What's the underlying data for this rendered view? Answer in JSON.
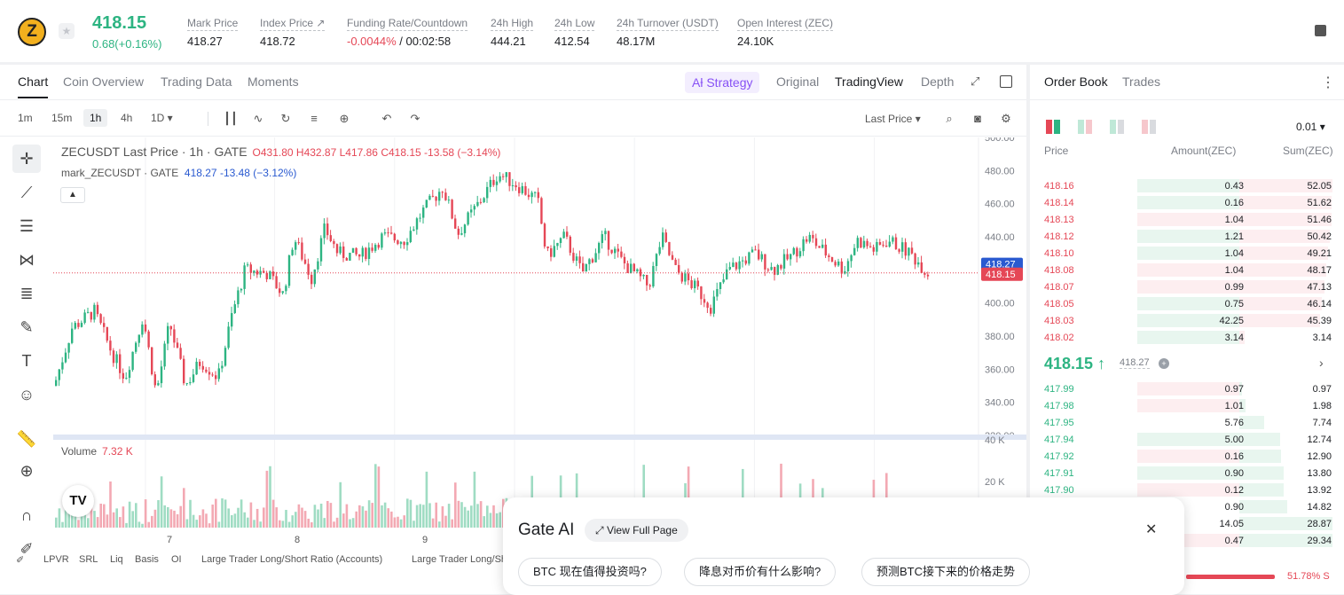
{
  "header": {
    "logo_letter": "Z",
    "star": "★",
    "last_price": "418.15",
    "change": "0.68(+0.16%)",
    "stats": [
      {
        "label": "Mark Price",
        "value": "418.27"
      },
      {
        "label": "Index Price ↗",
        "value": "418.72"
      },
      {
        "label": "Funding Rate/Countdown",
        "value_red": "-0.0044%",
        "value": " / 00:02:58"
      },
      {
        "label": "24h High",
        "value": "444.21"
      },
      {
        "label": "24h Low",
        "value": "412.54"
      },
      {
        "label": "24h Turnover (USDT)",
        "value": "48.17M"
      },
      {
        "label": "Open Interest (ZEC)",
        "value": "24.10K"
      }
    ]
  },
  "chart_tabs": [
    "Chart",
    "Coin Overview",
    "Trading Data",
    "Moments"
  ],
  "view_tabs": {
    "strategy": "Aƚ Strategy",
    "original": "Original",
    "tradingview": "TradingView",
    "depth": "Depth"
  },
  "timeframes": [
    "1m",
    "15m",
    "1h",
    "4h",
    "1D ▾"
  ],
  "price_type": "Last Price ▾",
  "legend": {
    "symbol": "ZECUSDT Last Price · 1h · GATE",
    "ohlc": "O431.80  H432.87  L417.86  C418.15  -13.58 (−3.14%)",
    "mark_name": "mark_ZECUSDT · GATE",
    "mark_vals": "418.27  -13.48 (−3.12%)",
    "volume_label": "Volume",
    "volume_value": "7.32 K"
  },
  "price_axis": [
    "500.00",
    "480.00",
    "460.00",
    "440.00",
    "420.00",
    "400.00",
    "380.00",
    "360.00",
    "340.00",
    "320.00"
  ],
  "price_tags": {
    "mark": "418.27",
    "last": "418.15"
  },
  "volume_axis": [
    "40 K",
    "20 K"
  ],
  "time_axis": [
    "7",
    "8",
    "9"
  ],
  "bottom_tabs": [
    "LPVR",
    "SRL",
    "Liq",
    "Basis",
    "OI",
    "Large Trader Long/Short Ratio (Accounts)",
    "Large Trader Long/Sh"
  ],
  "orderbook": {
    "tabs": [
      "Order Book",
      "Trades"
    ],
    "precision": "0.01  ▾",
    "headers": [
      "Price",
      "Amount(ZEC)",
      "Sum(ZEC)"
    ],
    "asks": [
      {
        "price": "418.16",
        "amount": "0.43",
        "sum": "52.05",
        "green": true,
        "apct": 1.0,
        "spct": 1.0
      },
      {
        "price": "418.14",
        "amount": "0.16",
        "sum": "51.62",
        "green": true,
        "apct": 1.0,
        "spct": 0.99
      },
      {
        "price": "418.13",
        "amount": "1.04",
        "sum": "51.46",
        "green": false,
        "apct": 1.0,
        "spct": 0.99
      },
      {
        "price": "418.12",
        "amount": "1.21",
        "sum": "50.42",
        "green": true,
        "apct": 1.0,
        "spct": 0.97
      },
      {
        "price": "418.10",
        "amount": "1.04",
        "sum": "49.21",
        "green": true,
        "apct": 1.0,
        "spct": 0.95
      },
      {
        "price": "418.08",
        "amount": "1.04",
        "sum": "48.17",
        "green": false,
        "apct": 1.0,
        "spct": 0.93
      },
      {
        "price": "418.07",
        "amount": "0.99",
        "sum": "47.13",
        "green": false,
        "apct": 1.0,
        "spct": 0.91
      },
      {
        "price": "418.05",
        "amount": "0.75",
        "sum": "46.14",
        "green": true,
        "apct": 1.0,
        "spct": 0.89
      },
      {
        "price": "418.03",
        "amount": "42.25",
        "sum": "45.39",
        "green": true,
        "apct": 1.0,
        "spct": 0.87
      },
      {
        "price": "418.02",
        "amount": "3.14",
        "sum": "3.14",
        "green": true,
        "apct": 1.0,
        "spct": 0.06
      }
    ],
    "mid_price": "418.15 ↑",
    "mid_mark": "418.27",
    "mid_info": "+",
    "bids": [
      {
        "price": "417.99",
        "amount": "0.97",
        "sum": "0.97",
        "green": false,
        "apct": 1.0,
        "spct": 0.03
      },
      {
        "price": "417.98",
        "amount": "1.01",
        "sum": "1.98",
        "green": false,
        "apct": 1.0,
        "spct": 0.07
      },
      {
        "price": "417.95",
        "amount": "5.76",
        "sum": "7.74",
        "green": false,
        "apct": 0.0,
        "spct": 0.27
      },
      {
        "price": "417.94",
        "amount": "5.00",
        "sum": "12.74",
        "green": true,
        "apct": 1.0,
        "spct": 0.44
      },
      {
        "price": "417.92",
        "amount": "0.16",
        "sum": "12.90",
        "green": false,
        "apct": 1.0,
        "spct": 0.45
      },
      {
        "price": "417.91",
        "amount": "0.90",
        "sum": "13.80",
        "green": true,
        "apct": 1.0,
        "spct": 0.48
      },
      {
        "price": "417.90",
        "amount": "0.12",
        "sum": "13.92",
        "green": false,
        "apct": 1.0,
        "spct": 0.48
      },
      {
        "price": "",
        "amount": "0.90",
        "sum": "14.82",
        "green": true,
        "apct": 0.0,
        "spct": 0.51
      },
      {
        "price": "",
        "amount": "14.05",
        "sum": "28.87",
        "green": true,
        "apct": 0.0,
        "spct": 1.0
      },
      {
        "price": "",
        "amount": "0.47",
        "sum": "29.34",
        "green": false,
        "apct": 1.0,
        "spct": 1.0
      }
    ],
    "ratio_sell": "51.78% S"
  },
  "ai_panel": {
    "title": "Gate AI",
    "view_full": "View Full Page",
    "chips": [
      "BTC 现在值得投资吗?",
      "降息对币价有什么影响?",
      "预测BTC接下来的价格走势"
    ]
  },
  "colors": {
    "up": "#2db482",
    "down": "#e54756",
    "accent": "#8751f5",
    "mark": "#2a5ad0"
  },
  "chart_data": {
    "type": "candlestick",
    "y_range": [
      320,
      500
    ],
    "volume_range": [
      0,
      40000
    ],
    "series": [
      {
        "name": "ZECUSDT Last Price · 1h · GATE",
        "last": 418.15
      },
      {
        "name": "mark_ZECUSDT · GATE",
        "last": 418.27
      }
    ]
  }
}
